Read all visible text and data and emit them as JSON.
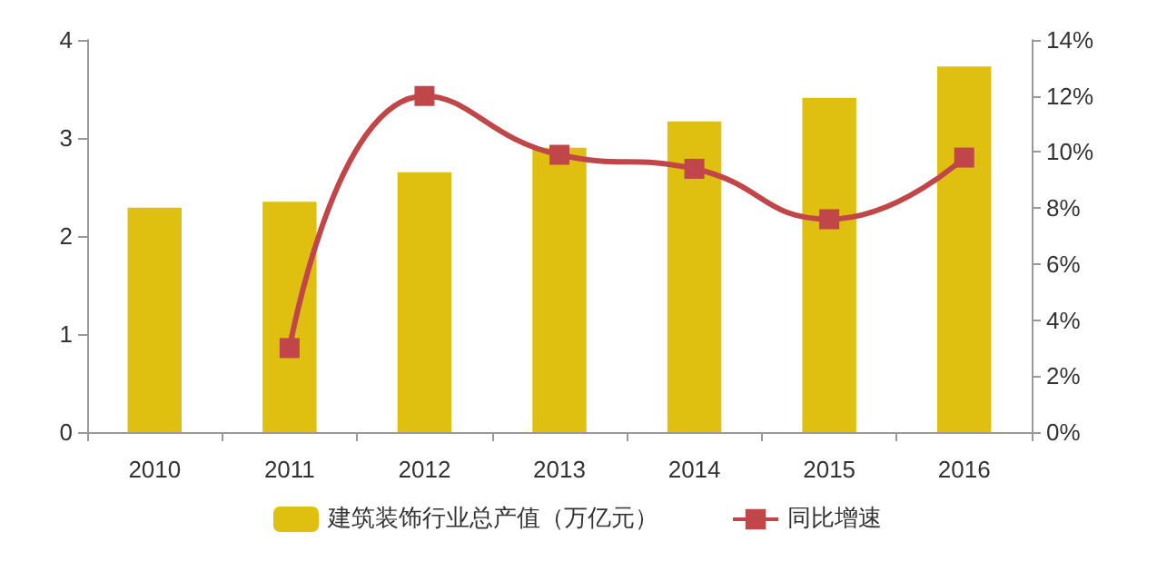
{
  "chart_data": {
    "type": "bar",
    "categories": [
      "2010",
      "2011",
      "2012",
      "2013",
      "2014",
      "2015",
      "2016"
    ],
    "series": [
      {
        "name": "建筑装饰行业总产值（万亿元）",
        "color": "#dfbf10",
        "values": [
          2.29,
          2.35,
          2.65,
          2.9,
          3.17,
          3.41,
          3.73
        ]
      },
      {
        "name": "同比增速",
        "type": "line",
        "axis": "y2",
        "color": "#c0464a",
        "marker": "square",
        "values": [
          null,
          3.0,
          12.0,
          9.9,
          9.4,
          7.6,
          9.8
        ]
      }
    ],
    "ylim": [
      0,
      4
    ],
    "yticks": [
      0,
      1,
      2,
      3,
      4
    ],
    "y2lim": [
      0,
      14
    ],
    "y2ticks": [
      {
        "value": 0,
        "label": "0%"
      },
      {
        "value": 2,
        "label": "2%"
      },
      {
        "value": 4,
        "label": "4%"
      },
      {
        "value": 6,
        "label": "6%"
      },
      {
        "value": 8,
        "label": "8%"
      },
      {
        "value": 10,
        "label": "10%"
      },
      {
        "value": 12,
        "label": "12%"
      },
      {
        "value": 14,
        "label": "14%"
      }
    ],
    "legend": "bottom",
    "grid": false
  }
}
